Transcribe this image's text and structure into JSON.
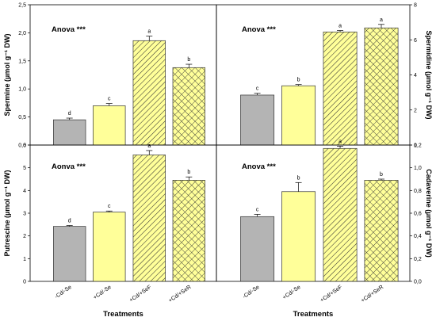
{
  "colors": {
    "gray": "#b4b4b4",
    "yellow": "#ffff99",
    "stroke": "#333333"
  },
  "category_patterns": [
    "solid-gray",
    "solid-yellow",
    "diagonal-hatch",
    "cross-hatch"
  ],
  "chart_data": [
    {
      "type": "bar",
      "panel": "top-left",
      "annotation": "Anova ***",
      "ylabel": "Spermine (µmol g⁻¹ DW)",
      "y_axis_side": "left",
      "ylim": [
        0,
        2.5
      ],
      "yticks": [
        "0,0",
        "0,5",
        "1,0",
        "1,5",
        "2,0",
        "2,5"
      ],
      "categories": [
        "-Cd/-Se",
        "+Cd/-Se",
        "+Cd/+SeF",
        "+Cd/+SeR"
      ],
      "values": [
        0.45,
        0.7,
        1.86,
        1.38
      ],
      "errors": [
        0.03,
        0.04,
        0.08,
        0.06
      ],
      "letters": [
        "d",
        "c",
        "a",
        "b"
      ]
    },
    {
      "type": "bar",
      "panel": "top-right",
      "annotation": "Anova ***",
      "ylabel": "Spermidine (µmol g⁻¹ DW)",
      "y_axis_side": "right",
      "ylim": [
        0,
        8
      ],
      "yticks": [
        "0",
        "2",
        "4",
        "6",
        "8"
      ],
      "categories": [
        "-Cd/-Se",
        "+Cd/-Se",
        "+Cd/+SeF",
        "+Cd/+SeR"
      ],
      "values": [
        2.85,
        3.38,
        6.45,
        6.68
      ],
      "errors": [
        0.1,
        0.07,
        0.08,
        0.2
      ],
      "letters": [
        "c",
        "b",
        "a",
        "a"
      ]
    },
    {
      "type": "bar",
      "panel": "bottom-left",
      "annotation": "Aonva ***",
      "ylabel": "Putrescine (µmol g⁻¹ DW)",
      "xlabel": "Treatments",
      "y_axis_side": "left",
      "ylim": [
        0,
        6.2
      ],
      "yticks": [
        "0",
        "1",
        "2",
        "3",
        "4",
        "5",
        "6"
      ],
      "categories": [
        "-Cd/-Se",
        "+Cd/-Se",
        "+Cd/+SeF",
        "+Cd/+SeR"
      ],
      "values": [
        2.5,
        3.15,
        5.75,
        4.6
      ],
      "errors": [
        0.04,
        0.05,
        0.2,
        0.15
      ],
      "letters": [
        "d",
        "c",
        "a",
        "b"
      ]
    },
    {
      "type": "bar",
      "panel": "bottom-right",
      "annotation": "Anova ***",
      "ylabel": "Cadaverine (µmol g⁻¹ DW)",
      "xlabel": "Treatments",
      "y_axis_side": "right",
      "ylim": [
        0,
        1.2
      ],
      "yticks": [
        "0,0",
        "0,2",
        "0,4",
        "0,6",
        "0,8",
        "1,0",
        "1,2"
      ],
      "categories": [
        "-Cd/-Se",
        "+Cd/-Se",
        "+Cd/+SeF",
        "+Cd/+SeR"
      ],
      "values": [
        0.57,
        0.79,
        1.17,
        0.89
      ],
      "errors": [
        0.02,
        0.08,
        0.02,
        0.01
      ],
      "letters": [
        "c",
        "b",
        "a",
        "b"
      ]
    }
  ]
}
